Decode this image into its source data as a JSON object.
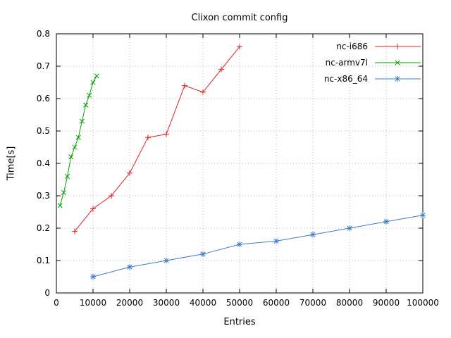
{
  "chart_data": {
    "type": "line",
    "title": "Clixon commit config",
    "xlabel": "Entries",
    "ylabel": "Time[s]",
    "xlim": [
      0,
      100000
    ],
    "ylim": [
      0,
      0.8
    ],
    "grid": true,
    "legend_position": "top-right",
    "x_tick_values": [
      0,
      10000,
      20000,
      30000,
      40000,
      50000,
      60000,
      70000,
      80000,
      90000,
      100000
    ],
    "x_tick_labels": [
      "0",
      "10000",
      "20000",
      "30000",
      "40000",
      "50000",
      "60000",
      "70000",
      "80000",
      "90000",
      "100000"
    ],
    "y_tick_values": [
      0,
      0.1,
      0.2,
      0.3,
      0.4,
      0.5,
      0.6,
      0.7,
      0.8
    ],
    "y_tick_labels": [
      "0",
      "0.1",
      "0.2",
      "0.3",
      "0.4",
      "0.5",
      "0.6",
      "0.7",
      "0.8"
    ],
    "series": [
      {
        "name": "nc-i686",
        "color": "#dd2222",
        "marker": "plus",
        "x": [
          5000,
          10000,
          15000,
          20000,
          25000,
          30000,
          35000,
          40000,
          45000,
          50000
        ],
        "y": [
          0.19,
          0.26,
          0.3,
          0.37,
          0.48,
          0.49,
          0.64,
          0.62,
          0.69,
          0.76
        ]
      },
      {
        "name": "nc-armv7l",
        "color": "#00a000",
        "marker": "x",
        "x": [
          1000,
          2000,
          3000,
          4000,
          5000,
          6000,
          7000,
          8000,
          9000,
          10000,
          11000
        ],
        "y": [
          0.27,
          0.31,
          0.36,
          0.42,
          0.45,
          0.48,
          0.53,
          0.58,
          0.61,
          0.65,
          0.67
        ]
      },
      {
        "name": "nc-x86_64",
        "color": "#3e7cc3",
        "marker": "asterisk",
        "x": [
          10000,
          20000,
          30000,
          40000,
          50000,
          60000,
          70000,
          80000,
          90000,
          100000
        ],
        "y": [
          0.05,
          0.08,
          0.1,
          0.12,
          0.15,
          0.16,
          0.18,
          0.2,
          0.22,
          0.24
        ]
      }
    ]
  }
}
